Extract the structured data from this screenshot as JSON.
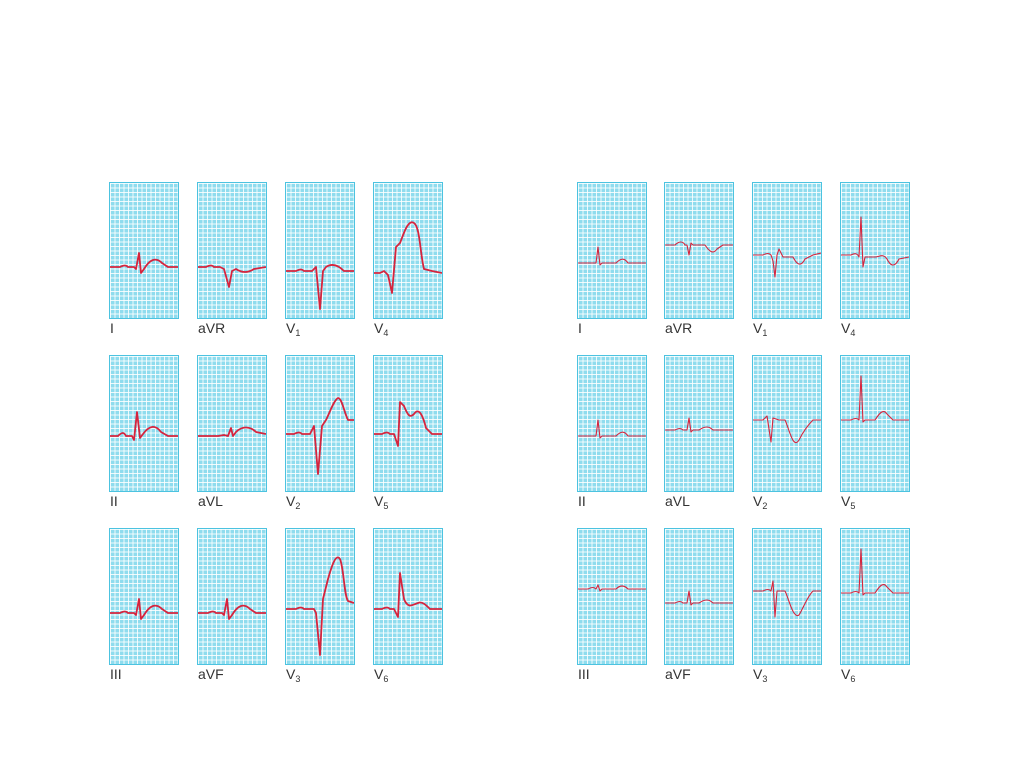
{
  "colors": {
    "grid_bg": "#8fdcee",
    "grid_line": "#ffffff",
    "trace": "#d6243d",
    "label": "#333333"
  },
  "left_panel": {
    "rows": [
      {
        "leads": [
          {
            "name": "I",
            "sub": "",
            "waveform": "st-elevation-small"
          },
          {
            "name": "aVR",
            "sub": "",
            "waveform": "inverted-small"
          },
          {
            "name": "V",
            "sub": "1",
            "waveform": "deep-s"
          },
          {
            "name": "V",
            "sub": "4",
            "waveform": "tombstone"
          }
        ]
      },
      {
        "leads": [
          {
            "name": "II",
            "sub": "",
            "waveform": "st-elevation-tall"
          },
          {
            "name": "aVL",
            "sub": "",
            "waveform": "st-elevation-flat"
          },
          {
            "name": "V",
            "sub": "2",
            "waveform": "deep-s-st-elevation"
          },
          {
            "name": "V",
            "sub": "5",
            "waveform": "st-elevation-tall-v5"
          }
        ]
      },
      {
        "leads": [
          {
            "name": "III",
            "sub": "",
            "waveform": "st-elevation-small"
          },
          {
            "name": "aVF",
            "sub": "",
            "waveform": "st-elevation-small"
          },
          {
            "name": "V",
            "sub": "3",
            "waveform": "deep-s-st-elevation-large"
          },
          {
            "name": "V",
            "sub": "6",
            "waveform": "st-elevation-tall-v6"
          }
        ]
      }
    ]
  },
  "right_panel": {
    "rows": [
      {
        "leads": [
          {
            "name": "I",
            "sub": "",
            "waveform": "upright-t"
          },
          {
            "name": "aVR",
            "sub": "",
            "waveform": "inverted-t-wide"
          },
          {
            "name": "V",
            "sub": "1",
            "waveform": "inverted-t-small"
          },
          {
            "name": "V",
            "sub": "4",
            "waveform": "tall-r-inverted-t"
          }
        ]
      },
      {
        "leads": [
          {
            "name": "II",
            "sub": "",
            "waveform": "upright-t"
          },
          {
            "name": "aVL",
            "sub": "",
            "waveform": "small-upright"
          },
          {
            "name": "V",
            "sub": "2",
            "waveform": "deep-inverted-t"
          },
          {
            "name": "V",
            "sub": "5",
            "waveform": "tall-r-upright-t"
          }
        ]
      },
      {
        "leads": [
          {
            "name": "III",
            "sub": "",
            "waveform": "flat-small"
          },
          {
            "name": "aVF",
            "sub": "",
            "waveform": "small-upright"
          },
          {
            "name": "V",
            "sub": "3",
            "waveform": "deep-inverted-t-v3"
          },
          {
            "name": "V",
            "sub": "6",
            "waveform": "tall-r-upright-t"
          }
        ]
      }
    ]
  }
}
